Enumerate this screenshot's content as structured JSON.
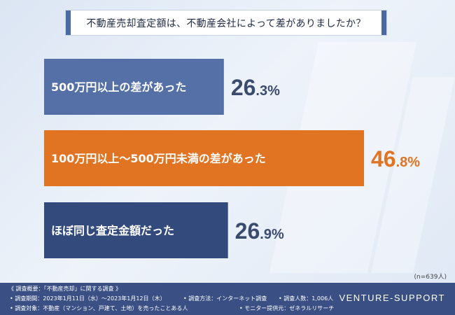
{
  "question": "不動産売却査定額は、不動産会社によって差がありましたか？",
  "n_note": "(n=639人)",
  "chart_data": {
    "type": "bar",
    "orientation": "horizontal",
    "categories": [
      "500万円以上の差があった",
      "100万円以上〜500万円未満の差があった",
      "ほぼ同じ査定金額だった"
    ],
    "values": [
      26.3,
      46.8,
      26.9
    ],
    "value_labels": [
      {
        "int": "26",
        "dec": ".3%"
      },
      {
        "int": "46",
        "dec": ".8%"
      },
      {
        "int": "26",
        "dec": ".9%"
      }
    ],
    "colors": [
      "#5470a6",
      "#e07422",
      "#334a7c"
    ],
    "value_colors": [
      "#3b4b6e",
      "#e07422",
      "#3b4b6e"
    ],
    "xlim": [
      0,
      46.8
    ]
  },
  "footer": {
    "overview": "《 調査概要：「不動産売却」に関する調査 》",
    "period": "• 調査期間：2023年1月11日（水）〜2023年1月12日（木）",
    "method": "• 調査方法：インターネット調査",
    "count": "• 調査人数：1,006人",
    "target": "• 調査対象：不動産（マンション、戸建て、土地）を売ったことある人",
    "provider": "• モニター提供元：ゼネラルリサーチ",
    "brand": "VENTURE-SUPPORT"
  }
}
